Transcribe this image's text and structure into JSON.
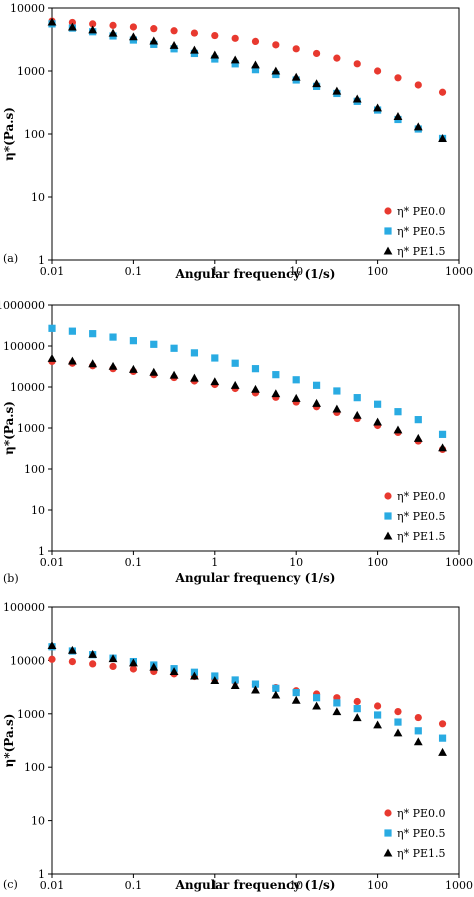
{
  "chart_data": [
    {
      "type": "scatter",
      "panel_label": "(a)",
      "xlabel": "Angular frequency (1/s)",
      "ylabel": "η*(Pa.s)",
      "xscale": "log",
      "yscale": "log",
      "xlim": [
        0.01,
        1000
      ],
      "ylim": [
        1,
        10000
      ],
      "x_ticks": [
        "0.01",
        "0.1",
        "1",
        "10",
        "100",
        "1000"
      ],
      "y_ticks": [
        "1",
        "10",
        "100",
        "1000",
        "10000"
      ],
      "grid": false,
      "legend_position": "bottom-right",
      "x": [
        0.01,
        0.0178,
        0.0316,
        0.0562,
        0.1,
        0.178,
        0.316,
        0.562,
        1,
        1.78,
        3.16,
        5.62,
        10,
        17.8,
        31.6,
        56.2,
        100,
        178,
        316,
        628
      ],
      "series": [
        {
          "name": "η* PE0.0",
          "marker": "circle",
          "color": "#e8392f",
          "values": [
            6200,
            5900,
            5600,
            5300,
            5000,
            4700,
            4350,
            4000,
            3650,
            3300,
            2950,
            2600,
            2250,
            1900,
            1600,
            1300,
            1000,
            780,
            600,
            460
          ]
        },
        {
          "name": "η* PE0.5",
          "marker": "square",
          "color": "#29abe2",
          "values": [
            5600,
            4800,
            4200,
            3600,
            3100,
            2650,
            2250,
            1900,
            1550,
            1300,
            1050,
            880,
            720,
            570,
            440,
            330,
            240,
            170,
            120,
            85
          ]
        },
        {
          "name": "η* PE1.5",
          "marker": "triangle",
          "color": "#000000",
          "values": [
            6000,
            5000,
            4500,
            4000,
            3500,
            3000,
            2550,
            2150,
            1800,
            1500,
            1250,
            1000,
            800,
            630,
            480,
            360,
            260,
            190,
            130,
            85
          ]
        }
      ]
    },
    {
      "type": "scatter",
      "panel_label": "(b)",
      "xlabel": "Angular frequency (1/s)",
      "ylabel": "η*(Pa.s)",
      "xscale": "log",
      "yscale": "log",
      "xlim": [
        0.01,
        1000
      ],
      "ylim": [
        1,
        1000000
      ],
      "x_ticks": [
        "0.01",
        "0.1",
        "1",
        "10",
        "100",
        "1000"
      ],
      "y_ticks": [
        "1",
        "10",
        "100",
        "1000",
        "10000",
        "100000",
        "1000000"
      ],
      "grid": false,
      "legend_position": "bottom-right",
      "x": [
        0.01,
        0.0178,
        0.0316,
        0.0562,
        0.1,
        0.178,
        0.316,
        0.562,
        1,
        1.78,
        3.16,
        5.62,
        10,
        17.8,
        31.6,
        56.2,
        100,
        178,
        316,
        628
      ],
      "series": [
        {
          "name": "η* PE0.0",
          "marker": "circle",
          "color": "#e8392f",
          "values": [
            42000,
            38000,
            33000,
            28000,
            24000,
            20000,
            17000,
            14000,
            11500,
            9200,
            7200,
            5600,
            4300,
            3300,
            2400,
            1700,
            1150,
            780,
            480,
            300
          ]
        },
        {
          "name": "η* PE0.5",
          "marker": "square",
          "color": "#29abe2",
          "values": [
            270000,
            230000,
            200000,
            165000,
            135000,
            110000,
            88000,
            68000,
            51000,
            38000,
            28000,
            20000,
            15000,
            11000,
            8000,
            5500,
            3800,
            2500,
            1600,
            700
          ]
        },
        {
          "name": "η* PE1.5",
          "marker": "triangle",
          "color": "#000000",
          "values": [
            50000,
            43000,
            37000,
            32000,
            27000,
            23000,
            19500,
            16500,
            13500,
            11000,
            8800,
            6900,
            5300,
            4000,
            2900,
            2050,
            1400,
            900,
            560,
            330
          ]
        }
      ]
    },
    {
      "type": "scatter",
      "panel_label": "(c)",
      "xlabel": "Angular frequency (1/s)",
      "ylabel": "η*(Pa.s)",
      "xscale": "log",
      "yscale": "log",
      "xlim": [
        0.01,
        1000
      ],
      "ylim": [
        1,
        100000
      ],
      "x_ticks": [
        "0.01",
        "0.1",
        "1",
        "10",
        "100",
        "1000"
      ],
      "y_ticks": [
        "1",
        "10",
        "100",
        "1000",
        "10000",
        "100000"
      ],
      "grid": false,
      "legend_position": "bottom-right",
      "x": [
        0.01,
        0.0178,
        0.0316,
        0.0562,
        0.1,
        0.178,
        0.316,
        0.562,
        1,
        1.78,
        3.16,
        5.62,
        10,
        17.8,
        31.6,
        56.2,
        100,
        178,
        316,
        628
      ],
      "series": [
        {
          "name": "η* PE0.0",
          "marker": "circle",
          "color": "#e8392f",
          "values": [
            10500,
            9500,
            8600,
            7700,
            6900,
            6200,
            5600,
            5000,
            4500,
            4000,
            3500,
            3100,
            2700,
            2350,
            2000,
            1700,
            1400,
            1100,
            850,
            650
          ]
        },
        {
          "name": "η* PE0.5",
          "marker": "square",
          "color": "#29abe2",
          "values": [
            18000,
            15000,
            12800,
            11000,
            9500,
            8200,
            7000,
            6000,
            5100,
            4300,
            3600,
            3000,
            2500,
            2000,
            1600,
            1250,
            950,
            700,
            480,
            350
          ]
        },
        {
          "name": "η* PE1.5",
          "marker": "triangle",
          "color": "#000000",
          "values": [
            19000,
            15500,
            13000,
            10800,
            9000,
            7500,
            6200,
            5100,
            4200,
            3400,
            2800,
            2250,
            1800,
            1400,
            1100,
            850,
            620,
            440,
            300,
            190
          ]
        }
      ]
    }
  ]
}
